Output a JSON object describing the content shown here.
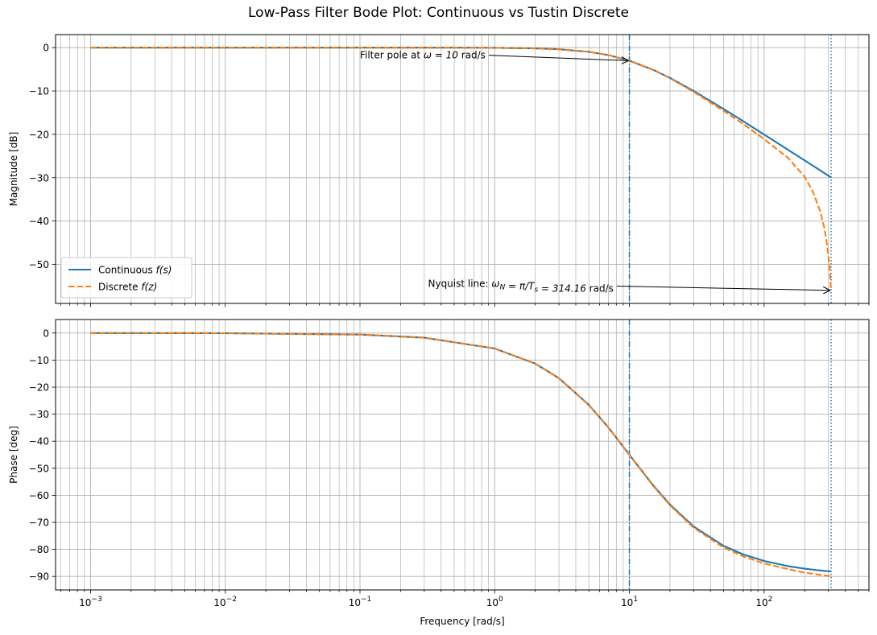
{
  "figure": {
    "title": "Low-Pass Filter Bode Plot: Continuous vs Tustin Discrete"
  },
  "chart_data": [
    {
      "type": "line",
      "panel": "magnitude",
      "title": "",
      "xlabel": "",
      "ylabel": "Magnitude [dB]",
      "xscale": "log",
      "xlim": [
        0.00055,
        600
      ],
      "ylim": [
        -59,
        3
      ],
      "yticks": [
        0,
        -10,
        -20,
        -30,
        -40,
        -50
      ],
      "ytick_labels": [
        "0",
        "−10",
        "−20",
        "−30",
        "−40",
        "−50"
      ],
      "grid": true,
      "legend": {
        "location": "lower-left",
        "entries": [
          {
            "series": "Continuous",
            "prefix": "Continuous ",
            "math_var": "f",
            "math_arg": "(s)"
          },
          {
            "series": "Discrete",
            "prefix": "Discrete ",
            "math_var": "f",
            "math_arg": "(z)"
          }
        ]
      },
      "series": [
        {
          "name": "Continuous",
          "color": "#1f77b4",
          "style": "solid",
          "x": [
            0.001,
            0.01,
            0.1,
            0.5,
            1,
            2,
            3,
            5,
            7,
            10,
            15,
            20,
            30,
            50,
            70,
            100,
            150,
            200,
            250,
            314.16
          ],
          "y": [
            0,
            0,
            0,
            -0.01,
            -0.04,
            -0.17,
            -0.37,
            -0.97,
            -1.73,
            -3.01,
            -5.12,
            -6.99,
            -10.0,
            -14.15,
            -16.98,
            -20.04,
            -23.54,
            -26.03,
            -27.96,
            -29.95
          ]
        },
        {
          "name": "Discrete",
          "color": "#ff7f0e",
          "style": "dashed",
          "x": [
            0.001,
            0.01,
            0.1,
            0.5,
            1,
            2,
            3,
            5,
            7,
            10,
            15,
            20,
            30,
            50,
            70,
            100,
            150,
            200,
            230,
            260,
            280,
            295,
            305,
            310,
            313
          ],
          "y": [
            0,
            0,
            0,
            -0.01,
            -0.04,
            -0.17,
            -0.37,
            -0.97,
            -1.73,
            -3.05,
            -5.15,
            -7.05,
            -10.2,
            -14.6,
            -17.6,
            -21.1,
            -25.4,
            -29.8,
            -33.2,
            -37.6,
            -41.6,
            -46.0,
            -50.2,
            -53.5,
            -56.0
          ]
        }
      ],
      "vlines": [
        {
          "x": 10,
          "style": "dashdot",
          "color": "#1f77b4"
        },
        {
          "x": 314.16,
          "style": "dotted",
          "color": "#1f77b4"
        }
      ],
      "annotations": [
        {
          "prefix": "Filter pole at ",
          "math": "ω = 10",
          "suffix": " rad/s",
          "text_x": 0.1,
          "text_y": -2.5,
          "arrow_x": 10,
          "arrow_y": -3.01
        },
        {
          "prefix": "Nyquist line: ",
          "math": "ω_N = π/T_s = 314.16",
          "suffix": " rad/s",
          "text_x": 0.32,
          "text_y": -55.2,
          "arrow_x": 314.16,
          "arrow_y": -56.0
        }
      ]
    },
    {
      "type": "line",
      "panel": "phase",
      "title": "",
      "xlabel": "Frequency [rad/s]",
      "ylabel": "Phase [deg]",
      "xscale": "log",
      "xlim": [
        0.00055,
        600
      ],
      "ylim": [
        -95,
        5
      ],
      "xticks": [
        0.001,
        0.01,
        0.1,
        1,
        10,
        100
      ],
      "xtick_labels": [
        {
          "base": "10",
          "exp": "−3"
        },
        {
          "base": "10",
          "exp": "−2"
        },
        {
          "base": "10",
          "exp": "−1"
        },
        {
          "base": "10",
          "exp": "0"
        },
        {
          "base": "10",
          "exp": "1"
        },
        {
          "base": "10",
          "exp": "2"
        }
      ],
      "yticks": [
        0,
        -10,
        -20,
        -30,
        -40,
        -50,
        -60,
        -70,
        -80,
        -90
      ],
      "ytick_labels": [
        "0",
        "−10",
        "−20",
        "−30",
        "−40",
        "−50",
        "−60",
        "−70",
        "−80",
        "−90"
      ],
      "grid": true,
      "series": [
        {
          "name": "Continuous",
          "color": "#1f77b4",
          "style": "solid",
          "x": [
            0.001,
            0.01,
            0.1,
            0.3,
            1,
            2,
            3,
            5,
            7,
            10,
            15,
            20,
            30,
            50,
            70,
            100,
            150,
            200,
            250,
            314.16
          ],
          "y": [
            0,
            -0.06,
            -0.57,
            -1.72,
            -5.71,
            -11.31,
            -16.7,
            -26.57,
            -34.99,
            -45.0,
            -56.31,
            -63.43,
            -71.57,
            -78.69,
            -81.87,
            -84.29,
            -86.19,
            -87.14,
            -87.71,
            -88.18
          ]
        },
        {
          "name": "Discrete",
          "color": "#ff7f0e",
          "style": "dashed",
          "x": [
            0.001,
            0.01,
            0.1,
            0.3,
            1,
            2,
            3,
            5,
            7,
            10,
            15,
            20,
            30,
            50,
            70,
            100,
            150,
            200,
            250,
            300,
            313
          ],
          "y": [
            0,
            -0.06,
            -0.57,
            -1.72,
            -5.71,
            -11.3,
            -16.7,
            -26.6,
            -35.0,
            -45.1,
            -56.5,
            -63.7,
            -72.0,
            -79.3,
            -82.6,
            -85.2,
            -87.3,
            -88.6,
            -89.3,
            -89.8,
            -90.0
          ]
        }
      ],
      "vlines": [
        {
          "x": 10,
          "style": "dashdot",
          "color": "#1f77b4"
        },
        {
          "x": 314.16,
          "style": "dotted",
          "color": "#1f77b4"
        }
      ]
    }
  ]
}
